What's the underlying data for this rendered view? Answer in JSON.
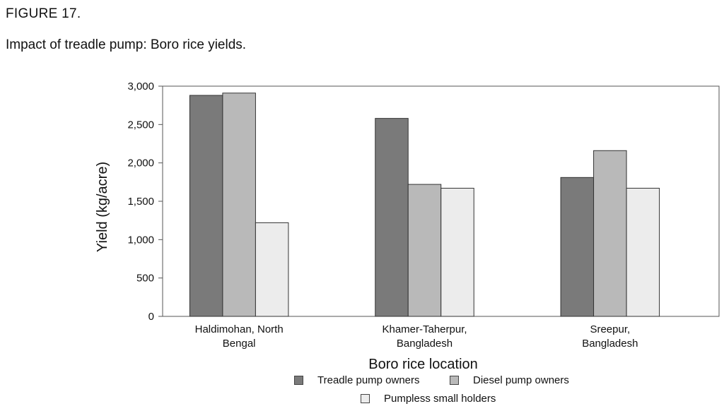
{
  "figure": {
    "label": "FIGURE 17.",
    "title": "Impact of treadle pump: Boro rice yields."
  },
  "chart_data": {
    "type": "bar",
    "categories": [
      [
        "Haldimohan, North",
        "Bengal"
      ],
      [
        "Khamer-Taherpur,",
        "Bangladesh"
      ],
      [
        "Sreepur,",
        "Bangladesh"
      ]
    ],
    "series": [
      {
        "name": "Treadle pump owners",
        "color": "#7a7a7a",
        "values": [
          2880,
          2580,
          1810
        ]
      },
      {
        "name": "Diesel pump owners",
        "color": "#b9b9b9",
        "values": [
          2910,
          1720,
          2160
        ]
      },
      {
        "name": "Pumpless small holders",
        "color": "#ececec",
        "values": [
          1220,
          1670,
          1670
        ]
      }
    ],
    "xlabel": "Boro rice location",
    "ylabel": "Yield (kg/acre)",
    "ylim": [
      0,
      3000
    ],
    "yticks": [
      0,
      500,
      1000,
      1500,
      2000,
      2500,
      3000
    ],
    "ytick_labels": [
      "0",
      "500",
      "1,000",
      "1,500",
      "2,000",
      "2,500",
      "3,000"
    ],
    "grid": false,
    "legend_position": "bottom"
  }
}
